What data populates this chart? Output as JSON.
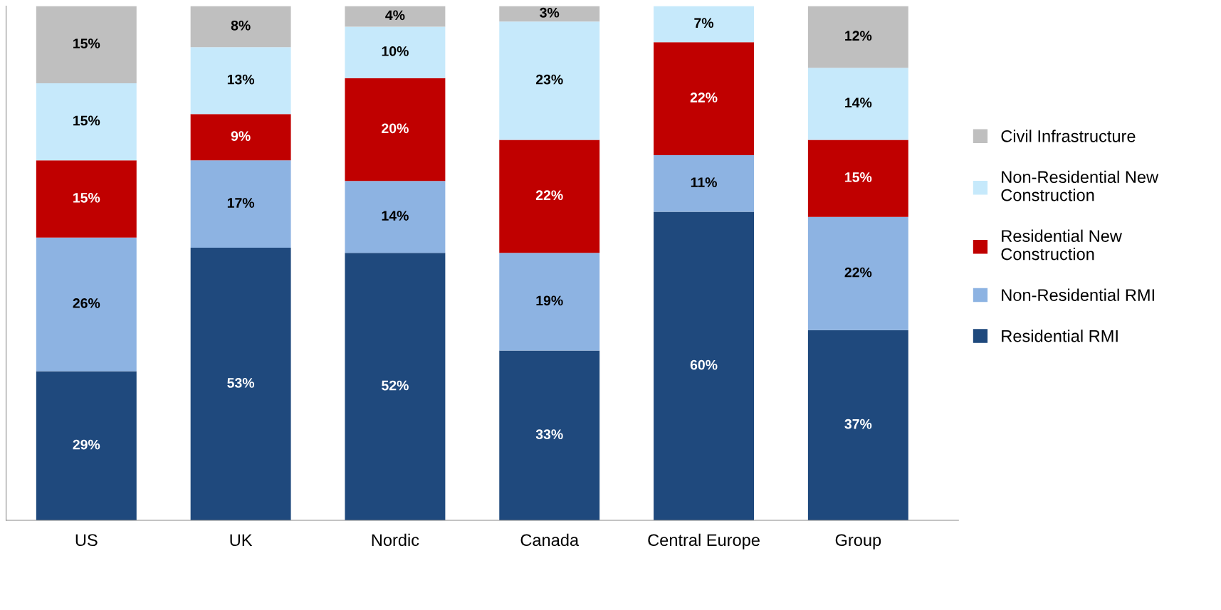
{
  "chart_data": {
    "type": "bar",
    "stacked": true,
    "categories": [
      "US",
      "UK",
      "Nordic",
      "Canada",
      "Central Europe",
      "Group"
    ],
    "ylim": [
      0,
      100
    ],
    "tick_labels": "x",
    "grid": false,
    "legend": "right",
    "series": [
      {
        "name": "Residential RMI",
        "color": "#1f497d",
        "values": [
          29,
          53,
          52,
          33,
          60,
          37
        ],
        "value_labels": [
          "29%",
          "53%",
          "52%",
          "33%",
          "60%",
          "37%"
        ]
      },
      {
        "name": "Non-Residential RMI",
        "color": "#8db3e2",
        "values": [
          26,
          17,
          14,
          19,
          11,
          22
        ],
        "value_labels": [
          "26%",
          "17%",
          "14%",
          "19%",
          "11%",
          "22%"
        ]
      },
      {
        "name": "Residential New Construction",
        "color": "#c00000",
        "values": [
          15,
          9,
          20,
          22,
          22,
          15
        ],
        "value_labels": [
          "15%",
          "9%",
          "20%",
          "22%",
          "22%",
          "15%"
        ]
      },
      {
        "name": "Non-Residential New Construction",
        "color": "#c6e9fb",
        "values": [
          15,
          13,
          10,
          23,
          7,
          14
        ],
        "value_labels": [
          "15%",
          "13%",
          "10%",
          "23%",
          "7%",
          "14%"
        ]
      },
      {
        "name": "Civil Infrastructure",
        "color": "#bfbfbf",
        "values": [
          15,
          8,
          4,
          3,
          null,
          12
        ],
        "value_labels": [
          "15%",
          "8%",
          "4%",
          "3%",
          null,
          "12%"
        ]
      }
    ]
  }
}
